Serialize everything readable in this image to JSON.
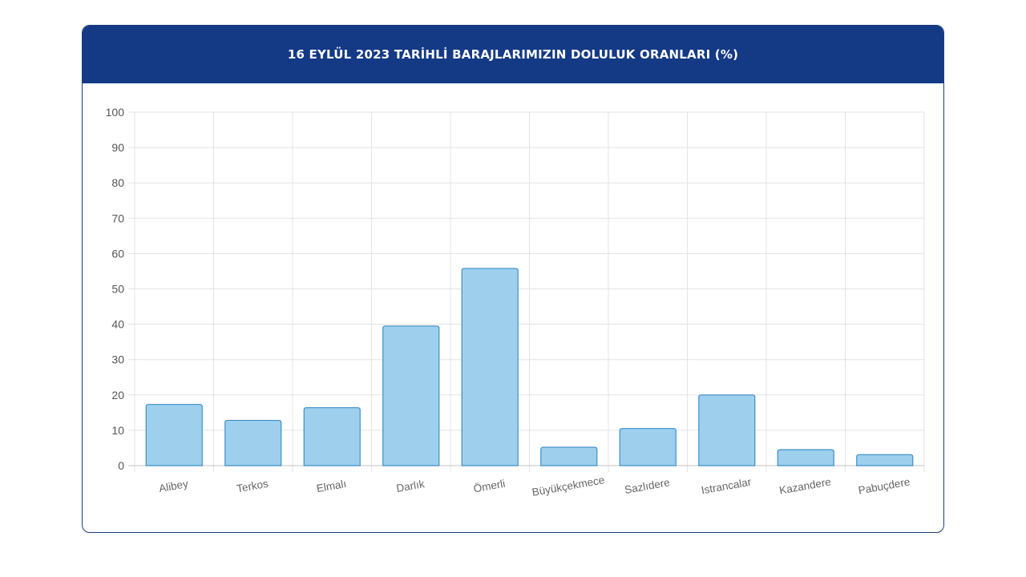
{
  "chart_data": {
    "type": "bar",
    "title": "16 EYLÜL 2023 TARİHLİ BARAJLARIMIZIN DOLULUK ORANLARI (%)",
    "categories": [
      "Alibey",
      "Terkos",
      "Elmalı",
      "Darlık",
      "Ömerli",
      "Büyükçekmece",
      "Sazlıdere",
      "Istrancalar",
      "Kazandere",
      "Pabuçdere"
    ],
    "values": [
      17.3,
      12.8,
      16.4,
      39.5,
      55.8,
      5.2,
      10.5,
      20.0,
      4.5,
      3.1
    ],
    "yticks": [
      "0",
      "10",
      "20",
      "30",
      "40",
      "50",
      "60",
      "70",
      "80",
      "90",
      "100"
    ],
    "ylim": [
      0,
      100
    ],
    "xlabel": "",
    "ylabel": "",
    "grid": true,
    "colors": {
      "header": "#143a85",
      "bar_fill": "#9ed0ee",
      "bar_stroke": "#3d8fc6",
      "grid": "#e3e3e3"
    }
  }
}
